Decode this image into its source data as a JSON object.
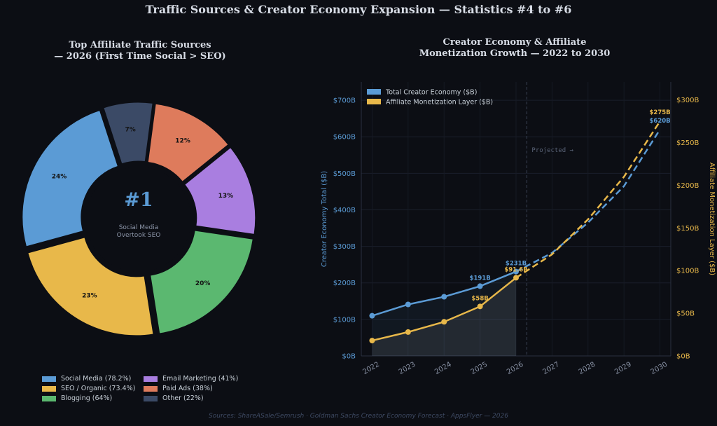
{
  "page": {
    "title": "Traffic Sources & Creator Economy Expansion — Statistics #4 to #6",
    "source": "Sources: ShareASale/Semrush · Goldman Sachs Creator Economy Forecast · AppsFlyer — 2026"
  },
  "chart_data": [
    {
      "type": "pie",
      "title": "Top Affiliate Traffic Sources\n— 2026 (First Time Social > SEO)",
      "title_line1": "Top Affiliate Traffic Sources",
      "title_line2": "— 2026 (First Time Social > SEO)",
      "center_label": "#1",
      "center_sub1": "Social Media",
      "center_sub2": "Overtook SEO",
      "slices": [
        {
          "label": "Social Media (78.2%)",
          "pct_label": "24%",
          "value": 24,
          "color": "#5b9bd5"
        },
        {
          "label": "SEO / Organic (73.4%)",
          "pct_label": "23%",
          "value": 23,
          "color": "#e8b84a"
        },
        {
          "label": "Blogging (64%)",
          "pct_label": "20%",
          "value": 20,
          "color": "#5bb870"
        },
        {
          "label": "Email Marketing (41%)",
          "pct_label": "13%",
          "value": 13,
          "color": "#a97ee0"
        },
        {
          "label": "Paid Ads (38%)",
          "pct_label": "12%",
          "value": 12,
          "color": "#de7b5c"
        },
        {
          "label": "Other (22%)",
          "pct_label": "7%",
          "value": 7,
          "color": "#3b4a66"
        }
      ]
    },
    {
      "type": "line",
      "title": "Creator Economy & Affiliate\nMonetization Growth — 2022 to 2030",
      "title_line1": "Creator Economy & Affiliate",
      "title_line2": "Monetization Growth — 2022 to 2030",
      "x": [
        2022,
        2023,
        2024,
        2025,
        2026,
        2027,
        2028,
        2029,
        2030
      ],
      "x_tick_labels": [
        "2022",
        "2023",
        "2024",
        "2025",
        "2026",
        "2027",
        "2028",
        "2029",
        "2030"
      ],
      "ylabel": "Creator Economy Total ($B)",
      "y2label": "Affiliate Monetization Layer ($B)",
      "ylim": [
        0,
        750
      ],
      "y2lim": [
        0,
        321
      ],
      "y_ticks": [
        0,
        100,
        200,
        300,
        400,
        500,
        600,
        700
      ],
      "y_tick_labels": [
        "$0B",
        "$100B",
        "$200B",
        "$300B",
        "$400B",
        "$500B",
        "$600B",
        "$700B"
      ],
      "y2_ticks": [
        0,
        50,
        100,
        150,
        200,
        250,
        300
      ],
      "y2_tick_labels": [
        "$0B",
        "$50B",
        "$100B",
        "$150B",
        "$200B",
        "$250B",
        "$300B"
      ],
      "projected_label": "Projected →",
      "projection_x": 2026.3,
      "series": [
        {
          "name": "Total Creator Economy ($B)",
          "axis": "left",
          "color": "#5b9bd5",
          "values": [
            110,
            141,
            162,
            191,
            231,
            282,
            365,
            465,
            620
          ],
          "observed_through": 2026,
          "data_labels": [
            {
              "x": 2025,
              "text": "$191B"
            },
            {
              "x": 2026,
              "text": "$231B"
            },
            {
              "x": 2030,
              "text": "$620B"
            }
          ]
        },
        {
          "name": "Affiliate Monetization Layer ($B)",
          "axis": "right",
          "color": "#e8b84a",
          "values": [
            18,
            28,
            40,
            58,
            91.6,
            119,
            160,
            210,
            275
          ],
          "observed_through": 2026,
          "data_labels": [
            {
              "x": 2025,
              "text": "$58B"
            },
            {
              "x": 2026,
              "text": "$91.6B"
            },
            {
              "x": 2030,
              "text": "$275B"
            }
          ]
        }
      ],
      "legend_position": "top-left"
    }
  ]
}
